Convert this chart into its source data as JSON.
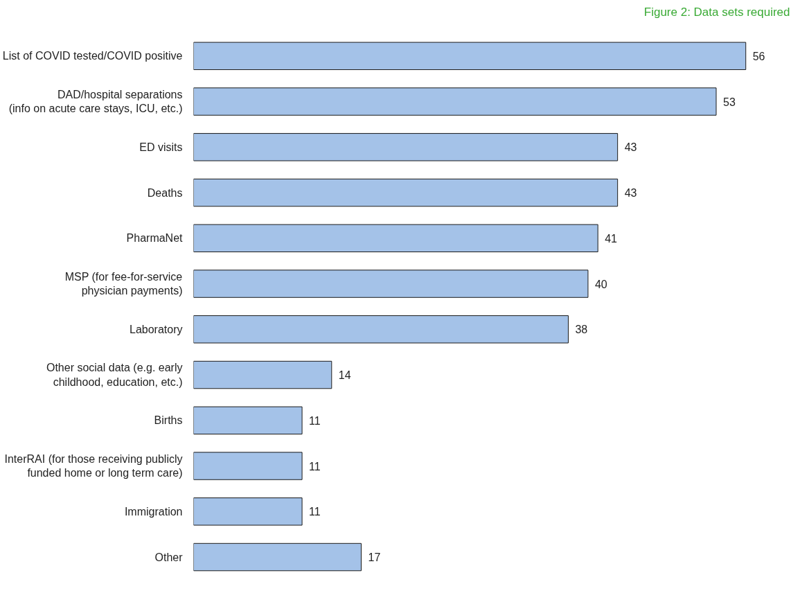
{
  "chart_data": {
    "type": "bar",
    "orientation": "horizontal",
    "title": "Figure 2: Data sets required",
    "categories": [
      "List of COVID tested/COVID positive",
      "DAD/hospital separations\n(info on acute care stays, ICU, etc.)",
      "ED visits",
      "Deaths",
      "PharmaNet",
      "MSP (for fee-for-service\nphysician payments)",
      "Laboratory",
      "Other social data (e.g. early\nchildhood, education, etc.)",
      "Births",
      "InterRAI (for those receiving publicly\nfunded home or long term care)",
      "Immigration",
      "Other"
    ],
    "values": [
      56,
      53,
      43,
      43,
      41,
      40,
      38,
      14,
      11,
      11,
      11,
      17
    ],
    "color": "#a4c2e8",
    "data_labels": true,
    "grid": false,
    "tick_labels": "y"
  }
}
